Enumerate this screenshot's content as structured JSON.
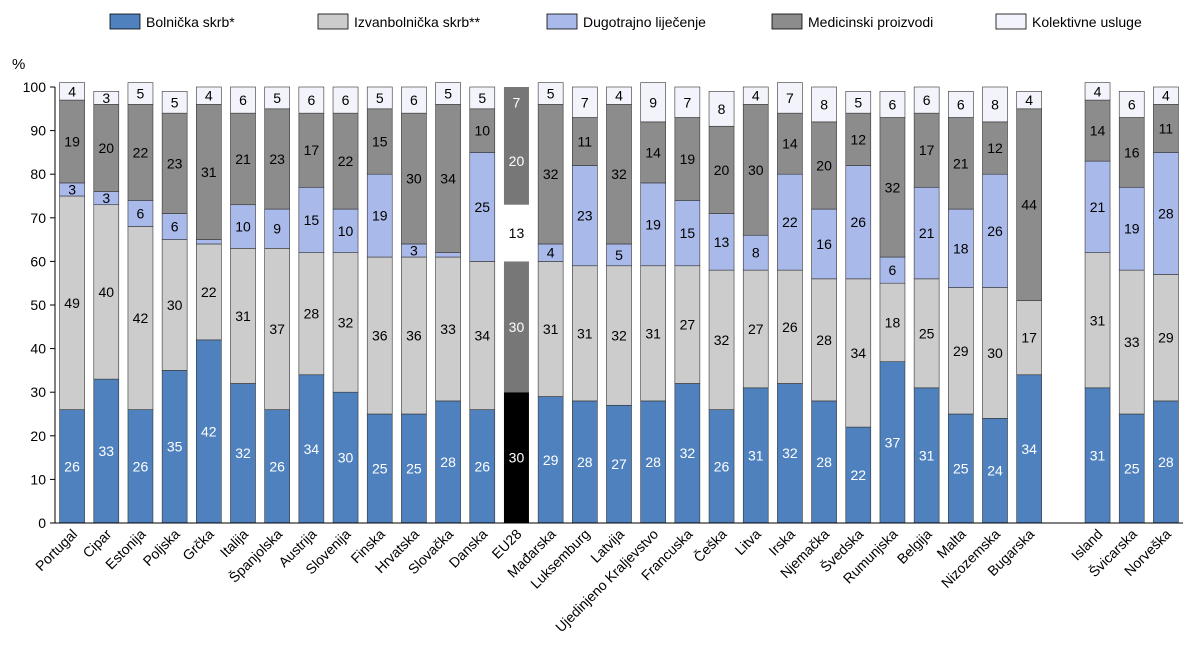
{
  "chart_data": {
    "type": "bar",
    "stacked": true,
    "yunit": "%",
    "ylim": [
      0,
      100
    ],
    "yticks": [
      0,
      10,
      20,
      30,
      40,
      50,
      60,
      70,
      80,
      90,
      100
    ],
    "grid": false,
    "legend_position": "top",
    "categories": [
      "Portugal",
      "Cipar",
      "Estonija",
      "Poljska",
      "Grčka",
      "Italija",
      "Španjolska",
      "Austrija",
      "Slovenija",
      "Finska",
      "Hrvatska",
      "Slovačka",
      "Danska",
      "EU28",
      "Mađarska",
      "Luksemburg",
      "Latvija",
      "Ujedinjeno Kraljevstvo",
      "Francuska",
      "Češka",
      "Litva",
      "Irska",
      "Njemačka",
      "Švedska",
      "Rumunjska",
      "Belgija",
      "Malta",
      "Nizozemska",
      "Bugarska",
      "",
      "Island",
      "Švicarska",
      "Norveška"
    ],
    "highlight_category": "EU28",
    "series": [
      {
        "name": "Bolnička skrb*",
        "color": "#4e81bd",
        "values": [
          26,
          33,
          26,
          35,
          42,
          32,
          26,
          34,
          30,
          25,
          25,
          28,
          26,
          30,
          29,
          28,
          27,
          28,
          32,
          26,
          31,
          32,
          28,
          22,
          37,
          31,
          25,
          24,
          34,
          null,
          31,
          25,
          28
        ]
      },
      {
        "name": "Izvanbolnička skrb**",
        "color": "#cccccc",
        "values": [
          49,
          40,
          42,
          30,
          22,
          31,
          37,
          28,
          32,
          36,
          36,
          33,
          34,
          30,
          31,
          31,
          32,
          31,
          27,
          32,
          27,
          26,
          28,
          34,
          18,
          25,
          29,
          30,
          17,
          null,
          31,
          33,
          29
        ]
      },
      {
        "name": "Dugotrajno liječenje",
        "color": "#a9b9ea",
        "values": [
          3,
          3,
          6,
          6,
          1,
          10,
          9,
          15,
          10,
          19,
          3,
          1,
          25,
          13,
          4,
          23,
          5,
          19,
          15,
          13,
          8,
          22,
          16,
          26,
          6,
          21,
          18,
          26,
          0,
          null,
          21,
          19,
          28
        ]
      },
      {
        "name": "Medicinski proizvodi",
        "color": "#8c8c8c",
        "values": [
          19,
          20,
          22,
          23,
          31,
          21,
          23,
          17,
          22,
          15,
          30,
          34,
          10,
          20,
          32,
          11,
          32,
          14,
          19,
          20,
          30,
          14,
          20,
          12,
          32,
          17,
          21,
          12,
          44,
          null,
          14,
          16,
          11
        ]
      },
      {
        "name": "Kolektivne usluge",
        "color": "#f2f3fb",
        "values": [
          4,
          3,
          5,
          5,
          4,
          6,
          5,
          6,
          6,
          5,
          6,
          5,
          5,
          7,
          5,
          7,
          4,
          9,
          7,
          8,
          4,
          7,
          8,
          5,
          6,
          6,
          6,
          8,
          4,
          null,
          4,
          6,
          4
        ]
      }
    ],
    "labels": [
      [
        "26",
        "33",
        "26",
        "35",
        "42",
        "32",
        "26",
        "34",
        "30",
        "25",
        "25",
        "28",
        "26",
        "30",
        "29",
        "28",
        "27",
        "28",
        "32",
        "26",
        "31",
        "32",
        "28",
        "22",
        "37",
        "31",
        "25",
        "24",
        "34",
        "",
        "31",
        "25",
        "28"
      ],
      [
        "49",
        "40",
        "42",
        "30",
        "22",
        "31",
        "37",
        "28",
        "32",
        "36",
        "36",
        "33",
        "34",
        "30",
        "31",
        "31",
        "32",
        "31",
        "27",
        "32",
        "27",
        "26",
        "28",
        "34",
        "18",
        "25",
        "29",
        "30",
        "17",
        "",
        "31",
        "33",
        "29"
      ],
      [
        "3",
        "3",
        "6",
        "6",
        "",
        "10",
        "9",
        "15",
        "10",
        "19",
        "3",
        "",
        "25",
        "13",
        "4",
        "23",
        "5",
        "19",
        "15",
        "13",
        "8",
        "22",
        "16",
        "26",
        "6",
        "21",
        "18",
        "26",
        "",
        "",
        "21",
        "19",
        "28"
      ],
      [
        "19",
        "20",
        "22",
        "23",
        "31",
        "21",
        "23",
        "17",
        "22",
        "15",
        "30",
        "34",
        "10",
        "20",
        "32",
        "11",
        "32",
        "14",
        "19",
        "20",
        "30",
        "14",
        "20",
        "12",
        "32",
        "17",
        "21",
        "12",
        "44",
        "",
        "14",
        "16",
        "11"
      ],
      [
        "4",
        "3",
        "5",
        "5",
        "4",
        "6",
        "5",
        "6",
        "6",
        "5",
        "6",
        "5",
        "5",
        "7",
        "5",
        "7",
        "4",
        "9",
        "7",
        "8",
        "4",
        "7",
        "8",
        "5",
        "6",
        "6",
        "6",
        "8",
        "4",
        "",
        "4",
        "6",
        "4"
      ]
    ],
    "highlight_colors": [
      "#000000",
      "#777777",
      "#ffffff",
      "#777777",
      "#777777"
    ]
  }
}
